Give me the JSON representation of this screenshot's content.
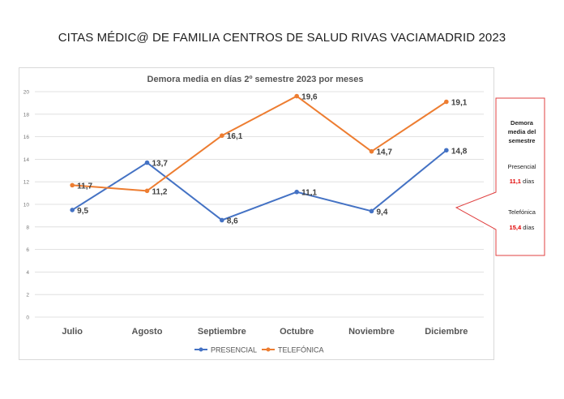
{
  "page_title": "CITAS MÉDIC@ DE FAMILIA CENTROS DE SALUD RIVAS VACIAMADRID 2023",
  "callout": {
    "heading_lines": [
      "Demora",
      "media del",
      "semestre"
    ],
    "presencial_label": "Presencial",
    "presencial_value": "11,1",
    "telefonica_label": "Telefónica",
    "telefonica_value": "15,4",
    "unit": "días",
    "border_color": "#e04040",
    "value_color": "#e00000"
  },
  "chart_data": {
    "type": "line",
    "title": "Demora media en días 2º semestre 2023 por meses",
    "categories": [
      "Julio",
      "Agosto",
      "Septiembre",
      "Octubre",
      "Noviembre",
      "Diciembre"
    ],
    "ylim": [
      0,
      20
    ],
    "yticks": [
      "0",
      "2",
      "4",
      "6",
      "8",
      "10",
      "12",
      "14",
      "16",
      "18",
      "20"
    ],
    "grid": true,
    "legend_position": "bottom",
    "series": [
      {
        "name": "PRESENCIAL",
        "color": "#4472c4",
        "values": [
          9.5,
          13.7,
          8.6,
          11.1,
          9.4,
          14.8
        ],
        "labels": [
          "9,5",
          "13,7",
          "8,6",
          "11,1",
          "9,4",
          "14,8"
        ]
      },
      {
        "name": "TELEFÓNICA",
        "color": "#ed7d31",
        "values": [
          11.7,
          11.2,
          16.1,
          19.6,
          14.7,
          19.1
        ],
        "labels": [
          "11,7",
          "11,2",
          "16,1",
          "19,6",
          "14,7",
          "19,1"
        ]
      }
    ]
  }
}
